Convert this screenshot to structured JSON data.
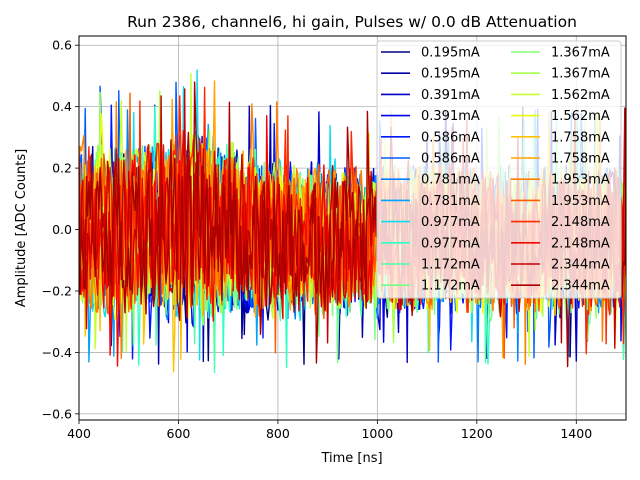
{
  "chart_data": {
    "type": "line",
    "title": "Run 2386, channel6, hi gain, Pulses w/ 0.0 dB Attenuation",
    "xlabel": "Time [ns]",
    "ylabel": "Amplitude [ADC Counts]",
    "xlim": [
      400,
      1500
    ],
    "ylim": [
      -0.62,
      0.63
    ],
    "x_ticks": [
      {
        "value": 400,
        "label": "400"
      },
      {
        "value": 600,
        "label": "600"
      },
      {
        "value": 800,
        "label": "800"
      },
      {
        "value": 1000,
        "label": "1000"
      },
      {
        "value": 1200,
        "label": "1200"
      },
      {
        "value": 1400,
        "label": "1400"
      }
    ],
    "y_ticks": [
      {
        "value": -0.6,
        "label": "−0.6"
      },
      {
        "value": -0.4,
        "label": "−0.4"
      },
      {
        "value": -0.2,
        "label": "−0.2"
      },
      {
        "value": 0.0,
        "label": "0.0"
      },
      {
        "value": 0.2,
        "label": "0.2"
      },
      {
        "value": 0.4,
        "label": "0.4"
      },
      {
        "value": 0.6,
        "label": "0.6"
      }
    ],
    "grid": true,
    "legend_position": "top-right",
    "legend_columns": 2,
    "noise_envelope": {
      "t": [
        400,
        500,
        600,
        650,
        700,
        800,
        900,
        1000,
        1100,
        1200,
        1300,
        1400,
        1500
      ],
      "low": [
        -0.32,
        -0.33,
        -0.35,
        -0.38,
        -0.34,
        -0.33,
        -0.33,
        -0.32,
        -0.32,
        -0.32,
        -0.32,
        -0.33,
        -0.32
      ],
      "high": [
        0.38,
        0.36,
        0.42,
        0.45,
        0.38,
        0.32,
        0.3,
        0.29,
        0.3,
        0.29,
        0.3,
        0.3,
        0.3
      ]
    },
    "series": [
      {
        "name": "0.195mA",
        "color": "#00007f"
      },
      {
        "name": "0.195mA",
        "color": "#0000a8"
      },
      {
        "name": "0.391mA",
        "color": "#0000c8"
      },
      {
        "name": "0.391mA",
        "color": "#0000f1"
      },
      {
        "name": "0.586mA",
        "color": "#0018ff"
      },
      {
        "name": "0.586mA",
        "color": "#005cff"
      },
      {
        "name": "0.781mA",
        "color": "#0080ff"
      },
      {
        "name": "0.781mA",
        "color": "#00a4ff"
      },
      {
        "name": "0.977mA",
        "color": "#0ddcf1"
      },
      {
        "name": "0.977mA",
        "color": "#31ffc6"
      },
      {
        "name": "1.172mA",
        "color": "#4fffa7"
      },
      {
        "name": "1.172mA",
        "color": "#73ff83"
      },
      {
        "name": "1.367mA",
        "color": "#83ff73"
      },
      {
        "name": "1.367mA",
        "color": "#a7ff4f"
      },
      {
        "name": "1.562mA",
        "color": "#c6ff31"
      },
      {
        "name": "1.562mA",
        "color": "#eaff0d"
      },
      {
        "name": "1.758mA",
        "color": "#ffc100"
      },
      {
        "name": "1.758mA",
        "color": "#ffa400"
      },
      {
        "name": "1.953mA",
        "color": "#ff8000"
      },
      {
        "name": "1.953mA",
        "color": "#ff5c00"
      },
      {
        "name": "2.148mA",
        "color": "#ff2900"
      },
      {
        "name": "2.148mA",
        "color": "#f10800"
      },
      {
        "name": "2.344mA",
        "color": "#c80000"
      },
      {
        "name": "2.344mA",
        "color": "#a80000"
      }
    ]
  }
}
